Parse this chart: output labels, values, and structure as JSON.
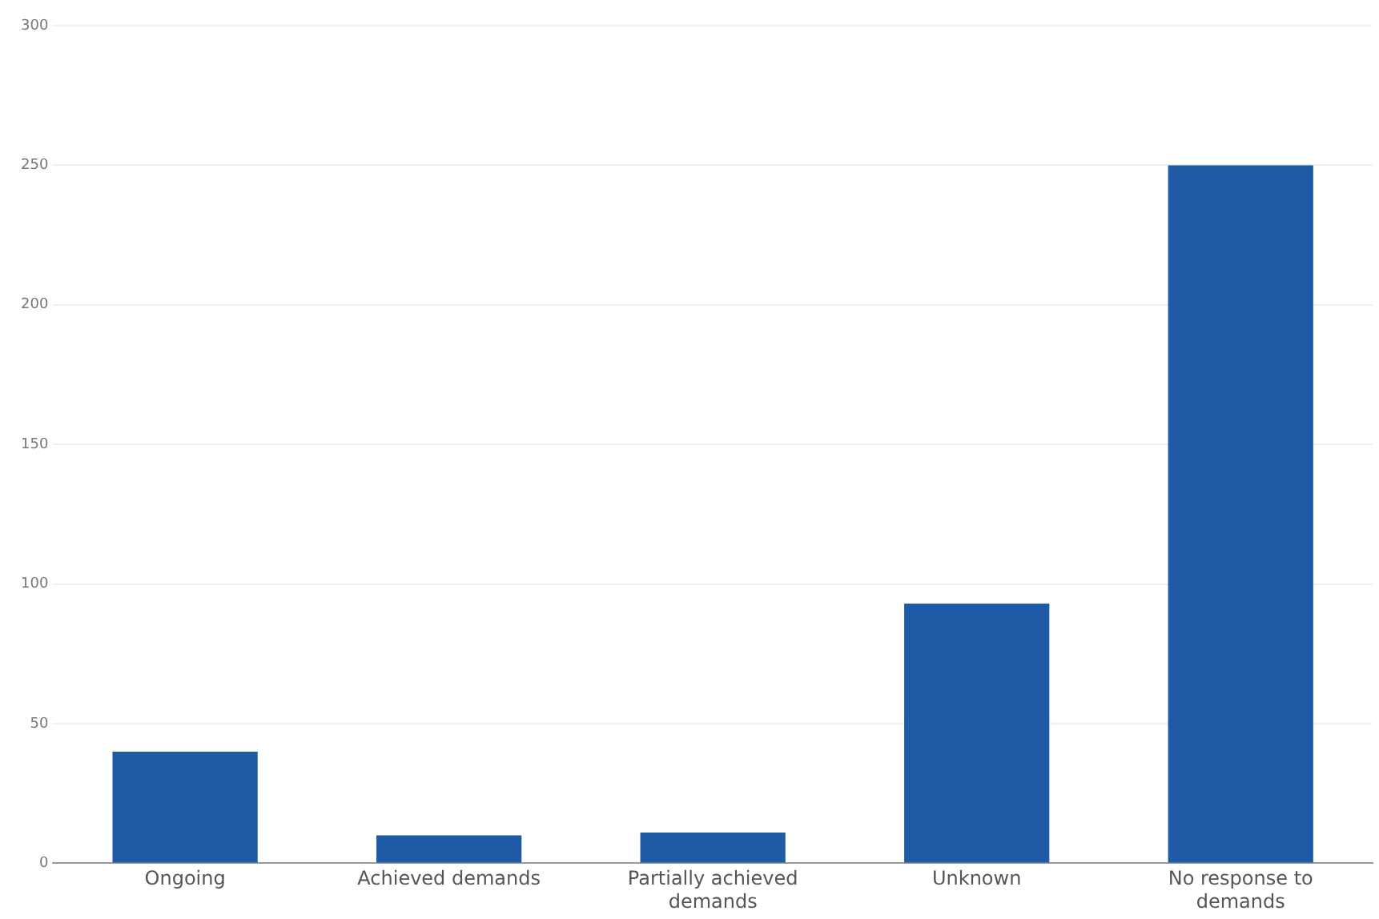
{
  "chart_data": {
    "type": "bar",
    "categories": [
      "Ongoing",
      "Achieved demands",
      "Partially achieved demands",
      "Unknown",
      "No response to demands"
    ],
    "values": [
      40,
      10,
      11,
      93,
      250
    ],
    "color": "#1f5aa6",
    "ylim": [
      0,
      300
    ],
    "yticks": [
      0,
      50,
      100,
      150,
      200,
      250,
      300
    ],
    "grid": "y"
  }
}
